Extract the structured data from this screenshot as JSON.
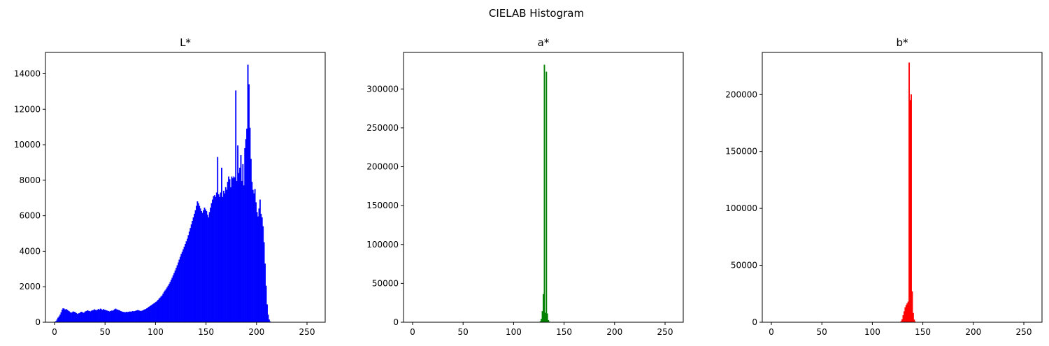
{
  "figure": {
    "suptitle": "CIELAB Histogram"
  },
  "chart_data": [
    {
      "type": "bar",
      "title": "L*",
      "xlabel": "",
      "ylabel": "",
      "xlim": [
        -9,
        268
      ],
      "ylim": [
        0,
        15200
      ],
      "xticks": [
        0,
        50,
        100,
        150,
        200,
        250
      ],
      "yticks": [
        0,
        2000,
        4000,
        6000,
        8000,
        10000,
        12000,
        14000
      ],
      "color": "#0000ff",
      "grid": false,
      "bins_start": 0,
      "bin_width": 1,
      "values": [
        20,
        60,
        150,
        250,
        320,
        420,
        550,
        700,
        780,
        760,
        700,
        740,
        690,
        650,
        610,
        560,
        520,
        560,
        600,
        580,
        560,
        510,
        470,
        480,
        500,
        540,
        580,
        560,
        520,
        540,
        600,
        620,
        660,
        640,
        620,
        600,
        640,
        660,
        680,
        720,
        690,
        660,
        700,
        740,
        700,
        760,
        720,
        690,
        730,
        700,
        680,
        660,
        640,
        620,
        600,
        620,
        650,
        640,
        680,
        720,
        760,
        720,
        700,
        680,
        660,
        620,
        600,
        580,
        570,
        560,
        560,
        580,
        560,
        580,
        600,
        580,
        600,
        620,
        600,
        620,
        640,
        660,
        680,
        660,
        640,
        620,
        640,
        660,
        700,
        720,
        740,
        780,
        820,
        860,
        900,
        940,
        980,
        1020,
        1060,
        1100,
        1140,
        1180,
        1250,
        1320,
        1380,
        1440,
        1500,
        1600,
        1700,
        1780,
        1860,
        1950,
        2050,
        2150,
        2260,
        2380,
        2500,
        2630,
        2760,
        2900,
        3050,
        3200,
        3360,
        3520,
        3680,
        3840,
        3960,
        4100,
        4250,
        4400,
        4550,
        4700,
        4900,
        5100,
        5300,
        5500,
        5700,
        5900,
        6100,
        6300,
        6550,
        6800,
        6700,
        6550,
        6400,
        6250,
        6150,
        6300,
        6450,
        6350,
        6250,
        6050,
        5900,
        6200,
        6450,
        6700,
        6900,
        7100,
        7150,
        7050,
        7300,
        9300,
        7200,
        7050,
        7300,
        8700,
        7050,
        7400,
        7250,
        7600,
        7450,
        7900,
        8200,
        8050,
        7600,
        8200,
        8100,
        8200,
        8150,
        13050,
        7950,
        9950,
        8400,
        8700,
        9400,
        7950,
        8900,
        7700,
        9800,
        10300,
        10900,
        14500,
        13400,
        10950,
        9200,
        7900,
        7450,
        7250,
        7500,
        6750,
        6200,
        5950,
        6400,
        6900,
        6100,
        5900,
        5400,
        4500,
        3300,
        2050,
        1000,
        420,
        150,
        40,
        10,
        0,
        0,
        0,
        0,
        0,
        0,
        0,
        0,
        0,
        0,
        0,
        0,
        0,
        0,
        0,
        0,
        0,
        0,
        0,
        0,
        0,
        0,
        0,
        0,
        0,
        0,
        0,
        0,
        0,
        0,
        0,
        0,
        0,
        0,
        0,
        0
      ]
    },
    {
      "type": "bar",
      "title": "a*",
      "xlabel": "",
      "ylabel": "",
      "xlim": [
        -9,
        268
      ],
      "ylim": [
        0,
        347000
      ],
      "xticks": [
        0,
        50,
        100,
        150,
        200,
        250
      ],
      "yticks": [
        0,
        50000,
        100000,
        150000,
        200000,
        250000,
        300000
      ],
      "color": "#008000",
      "grid": false,
      "bins_start": 0,
      "bin_width": 1,
      "values": [
        0,
        0,
        0,
        0,
        0,
        0,
        0,
        0,
        0,
        0,
        0,
        0,
        0,
        0,
        0,
        0,
        0,
        0,
        0,
        0,
        0,
        0,
        0,
        0,
        0,
        0,
        0,
        0,
        0,
        0,
        0,
        0,
        0,
        0,
        0,
        0,
        0,
        0,
        0,
        0,
        0,
        0,
        0,
        0,
        0,
        0,
        0,
        0,
        0,
        0,
        0,
        0,
        0,
        0,
        0,
        0,
        0,
        0,
        0,
        0,
        0,
        0,
        0,
        0,
        0,
        0,
        0,
        0,
        0,
        0,
        0,
        0,
        0,
        0,
        0,
        0,
        0,
        0,
        0,
        0,
        0,
        0,
        0,
        0,
        0,
        0,
        0,
        0,
        0,
        0,
        0,
        0,
        0,
        0,
        0,
        0,
        0,
        0,
        0,
        0,
        0,
        0,
        0,
        0,
        0,
        0,
        0,
        0,
        0,
        0,
        0,
        0,
        0,
        0,
        0,
        0,
        0,
        0,
        0,
        0,
        0,
        0,
        0,
        0,
        0,
        0,
        0,
        0,
        0,
        0,
        0,
        0,
        0,
        0,
        0,
        0,
        0,
        0,
        0,
        0,
        0,
        0,
        0,
        0,
        0,
        0,
        0,
        0,
        0,
        0,
        0,
        0,
        0,
        0,
        0,
        0,
        0,
        0,
        0,
        0,
        0,
        0,
        0,
        0,
        0,
        0,
        0,
        0,
        0,
        0,
        0,
        0,
        0,
        0,
        0,
        0,
        0,
        0,
        0,
        0,
        0,
        0,
        0,
        0,
        0,
        0,
        0,
        0,
        0,
        0,
        0,
        0,
        0,
        0,
        0,
        0,
        0,
        0,
        0,
        0,
        0,
        0,
        0,
        0,
        0,
        0,
        0,
        0,
        0,
        0,
        0,
        0,
        0,
        0,
        0,
        0,
        0,
        0,
        0,
        0,
        0,
        0,
        0,
        0,
        0,
        0,
        0,
        0,
        0,
        0,
        0,
        0,
        0,
        0,
        0,
        0,
        0,
        0,
        0,
        0,
        0,
        0,
        0,
        0,
        0,
        0,
        0,
        0,
        0,
        0,
        0,
        0,
        0,
        0,
        0,
        0
      ]
    },
    {
      "type": "bar",
      "title": "b*",
      "xlabel": "",
      "ylabel": "",
      "xlim": [
        -9,
        268
      ],
      "ylim": [
        0,
        237000
      ],
      "xticks": [
        0,
        50,
        100,
        150,
        200,
        250
      ],
      "yticks": [
        0,
        50000,
        100000,
        150000,
        200000
      ],
      "color": "#ff0000",
      "grid": false,
      "bins_start": 0,
      "bin_width": 1,
      "values": [
        0,
        0,
        0,
        0,
        0,
        0,
        0,
        0,
        0,
        0,
        0,
        0,
        0,
        0,
        0,
        0,
        0,
        0,
        0,
        0,
        0,
        0,
        0,
        0,
        0,
        0,
        0,
        0,
        0,
        0,
        0,
        0,
        0,
        0,
        0,
        0,
        0,
        0,
        0,
        0,
        0,
        0,
        0,
        0,
        0,
        0,
        0,
        0,
        0,
        0,
        0,
        0,
        0,
        0,
        0,
        0,
        0,
        0,
        0,
        0,
        0,
        0,
        0,
        0,
        0,
        0,
        0,
        0,
        0,
        0,
        0,
        0,
        0,
        0,
        0,
        0,
        0,
        0,
        0,
        0,
        0,
        0,
        0,
        0,
        0,
        0,
        0,
        0,
        0,
        0,
        0,
        0,
        0,
        0,
        0,
        0,
        0,
        0,
        0,
        0,
        0,
        0,
        0,
        0,
        0,
        0,
        0,
        0,
        0,
        0,
        0,
        0,
        0,
        0,
        0,
        0,
        0,
        0,
        0,
        0,
        0,
        0,
        0,
        0,
        0,
        0,
        0,
        0,
        0,
        0,
        0,
        0,
        0,
        0,
        0,
        0,
        0,
        0,
        0,
        0,
        0,
        0,
        0,
        0,
        0,
        0,
        0,
        0,
        0,
        0,
        0,
        0,
        0,
        0,
        0,
        0,
        0,
        0,
        0,
        0,
        0,
        0,
        0,
        0,
        0,
        0,
        0,
        0,
        0,
        0,
        0,
        0,
        0,
        0,
        0,
        0,
        0,
        0,
        0,
        0,
        0,
        0,
        0,
        0,
        0,
        0,
        0,
        0,
        0,
        0,
        0,
        0,
        0,
        0,
        0,
        0,
        0,
        0,
        0,
        0,
        0,
        0,
        0,
        0,
        0,
        0,
        0,
        0,
        0,
        0,
        0,
        0,
        0,
        0,
        0,
        0,
        0,
        0,
        0,
        0,
        0,
        0,
        0,
        0,
        0,
        0,
        0,
        0,
        0,
        0,
        0,
        0,
        0,
        0,
        0,
        0,
        0,
        0,
        0,
        0,
        0,
        0,
        0,
        0,
        0,
        0,
        0,
        0,
        0,
        0,
        0,
        0,
        0,
        0,
        0,
        0,
        0
      ]
    }
  ],
  "peaks": {
    "a": {
      "start": 126,
      "values": [
        1200,
        4200,
        14000,
        36000,
        331000,
        12000,
        322000,
        11000,
        2500,
        600
      ]
    },
    "b": {
      "start": 128,
      "values": [
        800,
        2500,
        6000,
        9500,
        13000,
        15000,
        16500,
        18000,
        228000,
        195000,
        200000,
        27000,
        8000,
        2200,
        500
      ]
    }
  }
}
